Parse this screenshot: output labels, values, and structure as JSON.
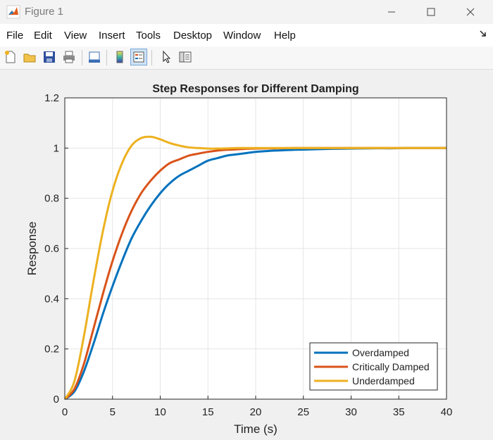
{
  "window": {
    "title": "Figure 1",
    "minimize_icon": "minimize-icon",
    "maximize_icon": "maximize-icon",
    "close_icon": "close-icon"
  },
  "menu": {
    "items": [
      "File",
      "Edit",
      "View",
      "Insert",
      "Tools",
      "Desktop",
      "Window",
      "Help"
    ]
  },
  "toolbar": {
    "buttons": [
      {
        "icon": "new-figure-icon"
      },
      {
        "icon": "open-file-icon"
      },
      {
        "icon": "save-icon"
      },
      {
        "icon": "print-icon"
      },
      {
        "icon": "link-plot-icon"
      },
      {
        "icon": "colorbar-icon"
      },
      {
        "icon": "legend-icon",
        "active": true
      },
      {
        "icon": "pointer-icon"
      },
      {
        "icon": "property-inspector-icon"
      }
    ]
  },
  "colors": {
    "overdamped": "#0072BD",
    "critically_damped": "#D95319",
    "underdamped": "#EDB120",
    "grid": "#e5e5e5",
    "axes_bg": "#ffffff"
  },
  "chart_data": {
    "type": "line",
    "title": "Step Responses for Different Damping",
    "xlabel": "Time (s)",
    "ylabel": "Response",
    "xlim": [
      0,
      40
    ],
    "ylim": [
      0,
      1.2
    ],
    "xticks": [
      0,
      5,
      10,
      15,
      20,
      25,
      30,
      35,
      40
    ],
    "yticks": [
      0,
      0.2,
      0.4,
      0.6,
      0.8,
      1,
      1.2
    ],
    "xtick_labels": [
      "0",
      "5",
      "10",
      "15",
      "20",
      "25",
      "30",
      "35",
      "40"
    ],
    "ytick_labels": [
      "0",
      "0.2",
      "0.4",
      "0.6",
      "0.8",
      "1",
      "1.2"
    ],
    "grid": true,
    "legend_position": "bottom-right",
    "x": [
      0,
      1,
      2,
      3,
      4,
      5,
      6,
      7,
      8,
      9,
      10,
      11,
      12,
      13,
      14,
      15,
      16,
      17,
      18,
      19,
      20,
      22,
      24,
      26,
      28,
      30,
      32,
      34,
      36,
      38,
      40
    ],
    "series": [
      {
        "name": "Overdamped",
        "color": "#0072BD",
        "values": [
          0,
          0.03,
          0.11,
          0.22,
          0.34,
          0.45,
          0.55,
          0.64,
          0.71,
          0.77,
          0.82,
          0.86,
          0.89,
          0.91,
          0.93,
          0.95,
          0.96,
          0.97,
          0.975,
          0.98,
          0.985,
          0.99,
          0.993,
          0.995,
          0.997,
          0.998,
          0.999,
          0.999,
          1,
          1,
          1
        ]
      },
      {
        "name": "Critically Damped",
        "color": "#D95319",
        "values": [
          0,
          0.04,
          0.14,
          0.28,
          0.42,
          0.55,
          0.66,
          0.75,
          0.82,
          0.87,
          0.91,
          0.94,
          0.955,
          0.97,
          0.978,
          0.985,
          0.99,
          0.993,
          0.995,
          0.997,
          0.998,
          0.999,
          1,
          1,
          1,
          1,
          1,
          1,
          1,
          1,
          1
        ]
      },
      {
        "name": "Underdamped",
        "color": "#EDB120",
        "values": [
          0,
          0.07,
          0.25,
          0.47,
          0.67,
          0.83,
          0.94,
          1.01,
          1.04,
          1.045,
          1.035,
          1.02,
          1.01,
          1.003,
          1.0,
          0.998,
          0.998,
          0.999,
          1.0,
          1.0,
          1.0,
          1.0,
          1.0,
          1.0,
          1.0,
          1.0,
          1.0,
          1.0,
          1.0,
          1.0,
          1.0
        ]
      }
    ]
  }
}
